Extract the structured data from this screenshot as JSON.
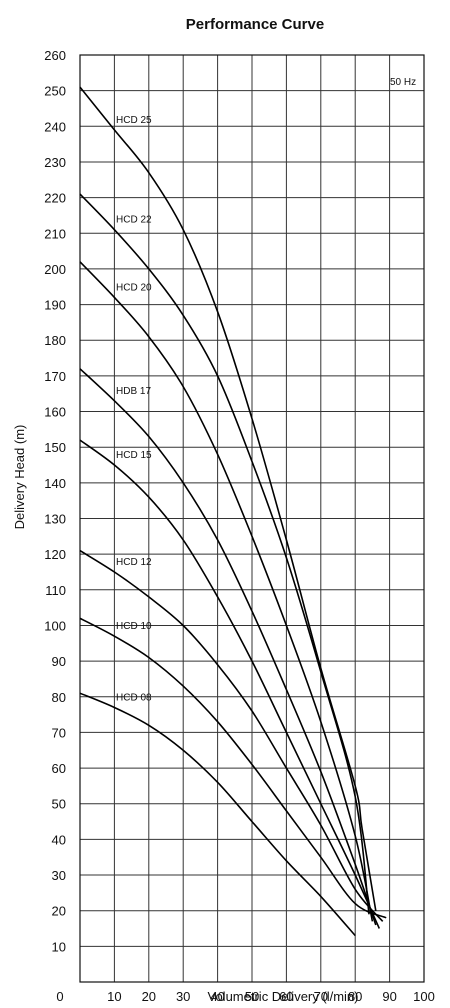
{
  "chart_data": {
    "type": "line",
    "title": "Performance Curve",
    "xlabel": "Volumetric Delivery (l/min)",
    "ylabel": "Delivery Head (m)",
    "xlim": [
      0,
      100
    ],
    "ylim": [
      0,
      260
    ],
    "x_ticks": [
      0,
      10,
      20,
      30,
      40,
      50,
      60,
      70,
      80,
      90,
      100
    ],
    "y_ticks": [
      10,
      20,
      30,
      40,
      50,
      60,
      70,
      80,
      90,
      100,
      110,
      120,
      130,
      140,
      150,
      160,
      170,
      180,
      190,
      200,
      210,
      220,
      230,
      240,
      250,
      260
    ],
    "origin_label": "0",
    "grid": true,
    "annotation": "50 Hz",
    "series": [
      {
        "name": "HCD 25",
        "x": [
          0,
          10,
          20,
          30,
          40,
          50,
          60,
          70,
          80,
          82,
          86
        ],
        "y": [
          251,
          239,
          227,
          211,
          188,
          158,
          124,
          88,
          55,
          43,
          20
        ]
      },
      {
        "name": "HCD 22",
        "x": [
          0,
          10,
          20,
          30,
          40,
          50,
          60,
          70,
          80,
          84
        ],
        "y": [
          221,
          211,
          200,
          187,
          170,
          146,
          119,
          87,
          52,
          19
        ]
      },
      {
        "name": "HCD 20",
        "x": [
          0,
          10,
          20,
          30,
          40,
          50,
          60,
          70,
          80,
          85
        ],
        "y": [
          202,
          192,
          181,
          167,
          148,
          125,
          100,
          73,
          41,
          17
        ]
      },
      {
        "name": "HDB 17",
        "x": [
          0,
          10,
          20,
          30,
          40,
          50,
          60,
          70,
          80,
          86
        ],
        "y": [
          172,
          163,
          153,
          140,
          124,
          104,
          82,
          59,
          33,
          16
        ]
      },
      {
        "name": "HCD 15",
        "x": [
          0,
          10,
          20,
          30,
          40,
          50,
          60,
          70,
          80,
          87
        ],
        "y": [
          152,
          145,
          136,
          124,
          108,
          90,
          70,
          50,
          30,
          15
        ]
      },
      {
        "name": "HCD 12",
        "x": [
          0,
          10,
          20,
          30,
          40,
          50,
          60,
          70,
          80,
          88
        ],
        "y": [
          121,
          115,
          108,
          100,
          89,
          76,
          60,
          44,
          26,
          17
        ]
      },
      {
        "name": "HCD 10",
        "x": [
          0,
          10,
          20,
          30,
          40,
          50,
          60,
          70,
          80,
          89
        ],
        "y": [
          102,
          97,
          91,
          83,
          73,
          61,
          48,
          35,
          22,
          18
        ]
      },
      {
        "name": "HCD 08",
        "x": [
          0,
          10,
          20,
          30,
          40,
          50,
          60,
          70,
          80
        ],
        "y": [
          81,
          77,
          72,
          65,
          56,
          45,
          34,
          24,
          13
        ]
      }
    ]
  },
  "colors": {
    "curve": "#000000",
    "grid": "#333333",
    "background": "#ffffff"
  }
}
